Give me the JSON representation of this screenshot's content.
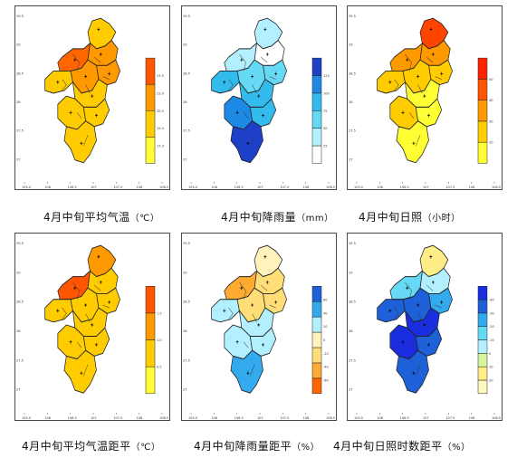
{
  "maps": [
    {
      "id": "temp",
      "caption": "4月中旬平均气温",
      "unit": "（℃）",
      "legend": [
        "#ffff33",
        "#ffcc00",
        "#ff9900",
        "#ff5500"
      ],
      "legend_labels": [
        "17.3",
        "19.0",
        "20.5",
        "22.0",
        "23.5"
      ],
      "regions": [
        "#ffcc00",
        "#ff9900",
        "#ff6600",
        "#ff9900",
        "#ffcc00",
        "#ff9900",
        "#ffcc00",
        "#ffcc00",
        "#ffcc00",
        "#ffcc00"
      ]
    },
    {
      "id": "precip",
      "caption": "4月中旬降雨量",
      "unit": "（mm）",
      "legend": [
        "#ffffff",
        "#b3f0ff",
        "#66d9f5",
        "#33bbee",
        "#1e88e5",
        "#1e40c8"
      ],
      "legend_labels": [
        "25",
        "50",
        "75",
        "100",
        "125"
      ],
      "regions": [
        "#b3f0ff",
        "#ffffff",
        "#b3f0ff",
        "#66d9f5",
        "#33bbee",
        "#66d9f5",
        "#33bbee",
        "#1e88e5",
        "#33bbee",
        "#1e40c8"
      ]
    },
    {
      "id": "sun",
      "caption": "4月中旬日照",
      "unit": "（小时）",
      "legend": [
        "#ffff33",
        "#ffcc00",
        "#ff9900",
        "#ff5500",
        "#ff2200"
      ],
      "legend_labels": [
        "20",
        "30",
        "40",
        "50"
      ],
      "regions": [
        "#ff4400",
        "#ff9900",
        "#ff9900",
        "#ffcc00",
        "#ffcc00",
        "#ffcc00",
        "#ffff33",
        "#ffcc00",
        "#ffff33",
        "#ffff33"
      ]
    },
    {
      "id": "temp_anom",
      "caption": "4月中旬平均气温距平",
      "unit": "（℃）",
      "legend": [
        "#ffff33",
        "#ffcc00",
        "#ff9900",
        "#ff5500"
      ],
      "legend_labels": [
        "0.5",
        "1.0",
        "1.5"
      ],
      "regions": [
        "#ff9900",
        "#ffcc00",
        "#ff5500",
        "#ffcc00",
        "#ffcc00",
        "#ffcc00",
        "#ffcc00",
        "#ffcc00",
        "#ffcc00",
        "#ffcc00"
      ]
    },
    {
      "id": "precip_anom",
      "caption": "4月中旬降雨量距平",
      "unit": "（%）",
      "legend": [
        "#ff6600",
        "#ffaa33",
        "#ffdd77",
        "#fff2bb",
        "#b3f0ff",
        "#33aaee",
        "#1e60d8"
      ],
      "legend_labels": [
        "-60",
        "-40",
        "-20",
        "0",
        "20",
        "40",
        "60"
      ],
      "regions": [
        "#fff2bb",
        "#ffdd77",
        "#ffaa33",
        "#ffdd77",
        "#b3f0ff",
        "#ffdd77",
        "#b3f0ff",
        "#b3f0ff",
        "#b3f0ff",
        "#33aaee"
      ]
    },
    {
      "id": "sun_anom",
      "caption": "4月中旬日照时数距平",
      "unit": "（%）",
      "legend": [
        "#fff8c0",
        "#ffee88",
        "#d6f5a0",
        "#b3f0ff",
        "#66d9f5",
        "#33aaee",
        "#1e60d8",
        "#1a2ee0"
      ],
      "legend_labels": [
        "20",
        "10",
        "0",
        "-10",
        "-20",
        "-30",
        "-40"
      ],
      "regions": [
        "#ffee88",
        "#b3f0ff",
        "#66d9f5",
        "#33aaee",
        "#1e60d8",
        "#1e60d8",
        "#1a2ee0",
        "#1a2ee0",
        "#1e60d8",
        "#1e60d8"
      ]
    }
  ],
  "axis": {
    "x_ticks": [
      "105.0",
      "106",
      "106.5",
      "107",
      "107.5",
      "108",
      "108.5"
    ],
    "y_ticks": [
      "29.5",
      "29",
      "28.5",
      "28",
      "27.5",
      "27"
    ]
  }
}
